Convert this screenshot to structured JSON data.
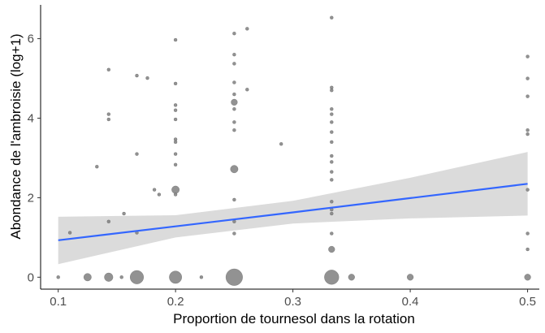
{
  "chart_data": {
    "type": "scatter",
    "xlabel": "Proportion de tournesol dans la rotation",
    "ylabel": "Abondance de l'ambroisie (log+1)",
    "xlim": [
      0.085,
      0.51
    ],
    "ylim": [
      -0.3,
      6.85
    ],
    "x_ticks": [
      0.1,
      0.2,
      0.3,
      0.4,
      0.5
    ],
    "x_tick_labels": [
      "0.1",
      "0.2",
      "0.3",
      "0.4",
      "0.5"
    ],
    "y_ticks": [
      0,
      2,
      4,
      6
    ],
    "y_tick_labels": [
      "0",
      "2",
      "4",
      "6"
    ],
    "grid": false,
    "point_color": "#7f7f7f",
    "points": [
      {
        "x": 0.1,
        "y": 0
      },
      {
        "x": 0.11,
        "y": 1.12
      },
      {
        "x": 0.125,
        "y": 0,
        "n": 3
      },
      {
        "x": 0.133,
        "y": 2.78
      },
      {
        "x": 0.143,
        "y": 5.22
      },
      {
        "x": 0.143,
        "y": 4.1
      },
      {
        "x": 0.143,
        "y": 3.97
      },
      {
        "x": 0.143,
        "y": 1.4
      },
      {
        "x": 0.143,
        "y": 0,
        "n": 4
      },
      {
        "x": 0.154,
        "y": 0
      },
      {
        "x": 0.156,
        "y": 1.6
      },
      {
        "x": 0.167,
        "y": 5.07
      },
      {
        "x": 0.167,
        "y": 3.1
      },
      {
        "x": 0.167,
        "y": 1.12
      },
      {
        "x": 0.167,
        "y": 0,
        "n": 12
      },
      {
        "x": 0.176,
        "y": 5.01
      },
      {
        "x": 0.182,
        "y": 2.2
      },
      {
        "x": 0.186,
        "y": 2.08
      },
      {
        "x": 0.2,
        "y": 5.97
      },
      {
        "x": 0.2,
        "y": 4.87
      },
      {
        "x": 0.2,
        "y": 4.33
      },
      {
        "x": 0.2,
        "y": 4.2
      },
      {
        "x": 0.2,
        "y": 3.97
      },
      {
        "x": 0.2,
        "y": 3.47
      },
      {
        "x": 0.2,
        "y": 3.4
      },
      {
        "x": 0.2,
        "y": 3.1
      },
      {
        "x": 0.2,
        "y": 2.83
      },
      {
        "x": 0.2,
        "y": 2.2,
        "n": 3
      },
      {
        "x": 0.2,
        "y": 2.08
      },
      {
        "x": 0.2,
        "y": 0,
        "n": 10
      },
      {
        "x": 0.222,
        "y": 0
      },
      {
        "x": 0.25,
        "y": 6.13
      },
      {
        "x": 0.25,
        "y": 5.6
      },
      {
        "x": 0.25,
        "y": 5.37
      },
      {
        "x": 0.25,
        "y": 4.9
      },
      {
        "x": 0.25,
        "y": 4.6
      },
      {
        "x": 0.25,
        "y": 4.4,
        "n": 2
      },
      {
        "x": 0.25,
        "y": 4.23
      },
      {
        "x": 0.25,
        "y": 3.9
      },
      {
        "x": 0.25,
        "y": 3.7
      },
      {
        "x": 0.25,
        "y": 2.72,
        "n": 3
      },
      {
        "x": 0.25,
        "y": 1.95
      },
      {
        "x": 0.25,
        "y": 1.4
      },
      {
        "x": 0.25,
        "y": 1.1
      },
      {
        "x": 0.25,
        "y": 0,
        "n": 20
      },
      {
        "x": 0.261,
        "y": 6.25
      },
      {
        "x": 0.261,
        "y": 4.72
      },
      {
        "x": 0.29,
        "y": 3.35
      },
      {
        "x": 0.333,
        "y": 6.53
      },
      {
        "x": 0.333,
        "y": 4.77
      },
      {
        "x": 0.333,
        "y": 4.7
      },
      {
        "x": 0.333,
        "y": 4.23
      },
      {
        "x": 0.333,
        "y": 4.1
      },
      {
        "x": 0.333,
        "y": 3.9
      },
      {
        "x": 0.333,
        "y": 3.65
      },
      {
        "x": 0.333,
        "y": 3.4
      },
      {
        "x": 0.333,
        "y": 3.05
      },
      {
        "x": 0.333,
        "y": 2.9
      },
      {
        "x": 0.333,
        "y": 2.65
      },
      {
        "x": 0.333,
        "y": 2.45
      },
      {
        "x": 0.333,
        "y": 1.9
      },
      {
        "x": 0.333,
        "y": 1.7
      },
      {
        "x": 0.333,
        "y": 1.6
      },
      {
        "x": 0.333,
        "y": 1.1
      },
      {
        "x": 0.333,
        "y": 0.7,
        "n": 2
      },
      {
        "x": 0.333,
        "y": 0,
        "n": 14
      },
      {
        "x": 0.35,
        "y": 0,
        "n": 2
      },
      {
        "x": 0.4,
        "y": 0,
        "n": 2
      },
      {
        "x": 0.5,
        "y": 5.55
      },
      {
        "x": 0.5,
        "y": 5.0
      },
      {
        "x": 0.5,
        "y": 4.55
      },
      {
        "x": 0.5,
        "y": 3.7
      },
      {
        "x": 0.5,
        "y": 3.6
      },
      {
        "x": 0.5,
        "y": 2.2
      },
      {
        "x": 0.5,
        "y": 1.1
      },
      {
        "x": 0.5,
        "y": 0.7
      },
      {
        "x": 0.5,
        "y": 0,
        "n": 2
      }
    ],
    "fit": {
      "line_color": "#3366ff",
      "band_color": "#d9d9d9",
      "x": [
        0.1,
        0.2,
        0.3,
        0.4,
        0.5
      ],
      "y": [
        0.93,
        1.28,
        1.63,
        1.99,
        2.35
      ],
      "ci_low": [
        0.33,
        1.0,
        1.35,
        1.48,
        1.55
      ],
      "ci_high": [
        1.52,
        1.56,
        1.92,
        2.5,
        3.15
      ]
    }
  }
}
